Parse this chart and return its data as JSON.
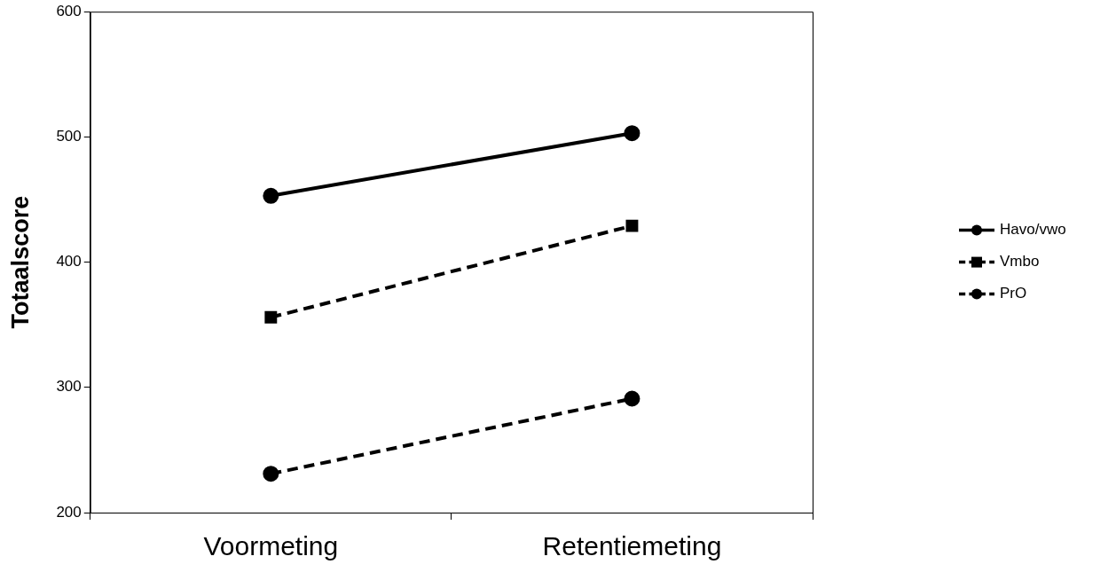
{
  "chart_data": {
    "type": "line",
    "ylabel": "Totaalscore",
    "categories": [
      "Voormeting",
      "Retentiemeting"
    ],
    "series": [
      {
        "name": "Havo/vwo",
        "color": "#000000",
        "values": [
          453,
          503
        ],
        "marker": "circle",
        "line_style": "solid"
      },
      {
        "name": "Vmbo",
        "color": "#000000",
        "values": [
          356,
          429
        ],
        "marker": "square",
        "line_style": "dashed"
      },
      {
        "name": "PrO",
        "color": "#000000",
        "values": [
          231,
          291
        ],
        "marker": "circle",
        "line_style": "dashed"
      }
    ],
    "ylim": [
      200,
      600
    ],
    "yticks": [
      200,
      300,
      400,
      500,
      600
    ],
    "grid": false,
    "legend": "right"
  }
}
